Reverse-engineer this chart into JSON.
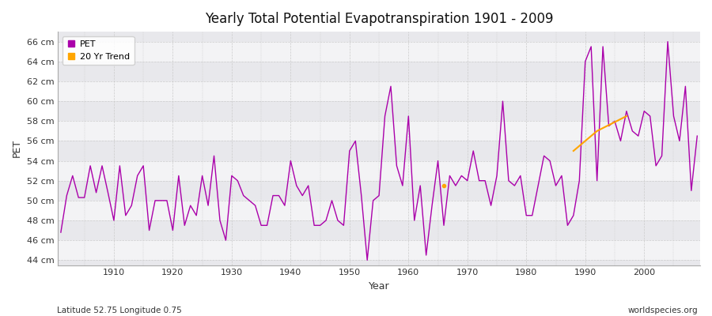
{
  "title": "Yearly Total Potential Evapotranspiration 1901 - 2009",
  "xlabel": "Year",
  "ylabel": "PET",
  "footnote_left": "Latitude 52.75 Longitude 0.75",
  "footnote_right": "worldspecies.org",
  "pet_color": "#aa00aa",
  "trend_color": "#FFA500",
  "ylim": [
    43.5,
    67.0
  ],
  "yticks": [
    44,
    46,
    48,
    50,
    52,
    54,
    56,
    58,
    60,
    62,
    64,
    66
  ],
  "bg_color": "#ffffff",
  "plot_bg_color": "#e8e8ec",
  "years": [
    1901,
    1902,
    1903,
    1904,
    1905,
    1906,
    1907,
    1908,
    1909,
    1910,
    1911,
    1912,
    1913,
    1914,
    1915,
    1916,
    1917,
    1918,
    1919,
    1920,
    1921,
    1922,
    1923,
    1924,
    1925,
    1926,
    1927,
    1928,
    1929,
    1930,
    1931,
    1932,
    1933,
    1934,
    1935,
    1936,
    1937,
    1938,
    1939,
    1940,
    1941,
    1942,
    1943,
    1944,
    1945,
    1946,
    1947,
    1948,
    1949,
    1950,
    1951,
    1952,
    1953,
    1954,
    1955,
    1956,
    1957,
    1958,
    1959,
    1960,
    1961,
    1962,
    1963,
    1964,
    1965,
    1966,
    1967,
    1968,
    1969,
    1970,
    1971,
    1972,
    1973,
    1974,
    1975,
    1976,
    1977,
    1978,
    1979,
    1980,
    1981,
    1982,
    1983,
    1984,
    1985,
    1986,
    1987,
    1988,
    1989,
    1990,
    1991,
    1992,
    1993,
    1994,
    1995,
    1996,
    1997,
    1998,
    1999,
    2000,
    2001,
    2002,
    2003,
    2004,
    2005,
    2006,
    2007,
    2008,
    2009
  ],
  "pet_values": [
    46.8,
    50.5,
    52.5,
    50.3,
    50.3,
    53.5,
    50.8,
    53.5,
    50.8,
    48.0,
    53.5,
    48.5,
    49.5,
    52.5,
    53.5,
    47.0,
    50.0,
    50.0,
    50.0,
    47.0,
    52.5,
    47.5,
    49.5,
    48.5,
    52.5,
    49.5,
    54.5,
    48.0,
    46.0,
    52.5,
    52.0,
    50.5,
    50.0,
    49.5,
    47.5,
    47.5,
    50.5,
    50.5,
    49.5,
    54.0,
    51.5,
    50.5,
    51.5,
    47.5,
    47.5,
    48.0,
    50.0,
    48.0,
    47.5,
    55.0,
    56.0,
    50.5,
    44.0,
    50.0,
    50.5,
    58.5,
    61.5,
    53.5,
    51.5,
    58.5,
    48.0,
    51.5,
    44.5,
    49.5,
    54.0,
    47.5,
    52.5,
    51.5,
    52.5,
    52.0,
    55.0,
    52.0,
    52.0,
    49.5,
    52.5,
    60.0,
    52.0,
    51.5,
    52.5,
    48.5,
    48.5,
    51.5,
    54.5,
    54.0,
    51.5,
    52.5,
    47.5,
    48.5,
    52.0,
    64.0,
    65.5,
    52.0,
    65.5,
    57.5,
    58.0,
    56.0,
    59.0,
    57.0,
    56.5,
    59.0,
    58.5,
    53.5,
    54.5,
    66.0,
    58.5,
    56.0,
    61.5,
    51.0,
    56.5
  ],
  "trend_years": [
    1988,
    1989,
    1990,
    1991,
    1992,
    1993,
    1994,
    1995,
    1996,
    1997
  ],
  "trend_values": [
    55.0,
    55.5,
    56.0,
    56.5,
    57.0,
    57.3,
    57.6,
    57.9,
    58.2,
    58.5
  ],
  "dot_year": [
    1966
  ],
  "dot_value": [
    51.5
  ]
}
